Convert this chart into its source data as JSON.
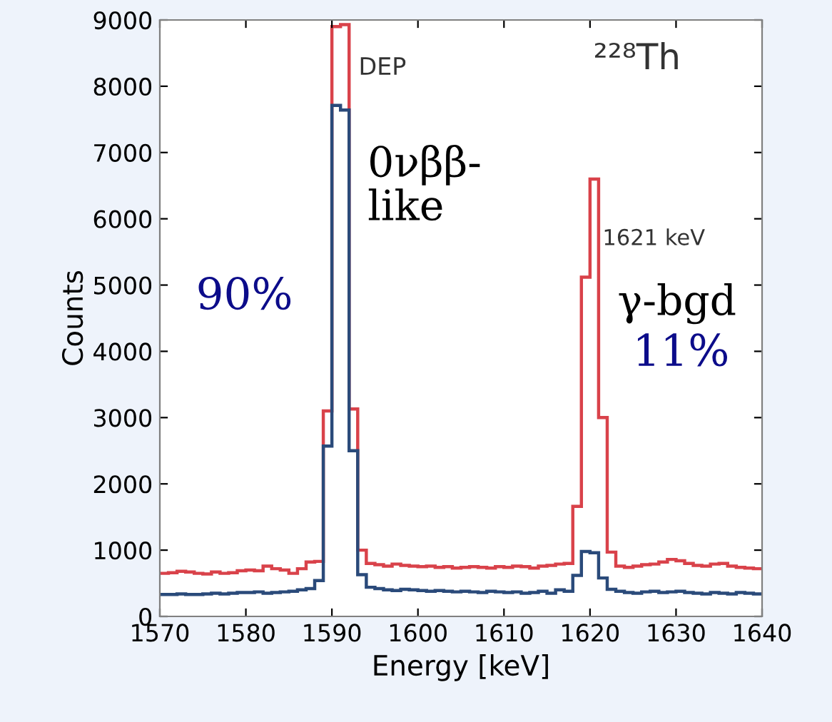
{
  "chart_data": {
    "type": "histogram",
    "xlabel": "Energy [keV]",
    "ylabel": "Counts",
    "bins": [
      1570,
      1571,
      1572,
      1573,
      1574,
      1575,
      1576,
      1577,
      1578,
      1579,
      1580,
      1581,
      1582,
      1583,
      1584,
      1585,
      1586,
      1587,
      1588,
      1589,
      1590,
      1591,
      1592,
      1593,
      1594,
      1595,
      1596,
      1597,
      1598,
      1599,
      1600,
      1601,
      1602,
      1603,
      1604,
      1605,
      1606,
      1607,
      1608,
      1609,
      1610,
      1611,
      1612,
      1613,
      1614,
      1615,
      1616,
      1617,
      1618,
      1619,
      1620,
      1621,
      1622,
      1623,
      1624,
      1625,
      1626,
      1627,
      1628,
      1629,
      1630,
      1631,
      1632,
      1633,
      1634,
      1635,
      1636,
      1637,
      1638,
      1639,
      1640
    ],
    "series": [
      {
        "color": "#d9424a",
        "values": [
          650,
          660,
          680,
          670,
          650,
          640,
          670,
          650,
          660,
          690,
          700,
          690,
          760,
          720,
          700,
          650,
          720,
          820,
          830,
          3100,
          8900,
          8930,
          3130,
          1000,
          800,
          780,
          760,
          790,
          770,
          760,
          750,
          760,
          740,
          750,
          730,
          740,
          750,
          740,
          730,
          750,
          740,
          760,
          750,
          730,
          760,
          770,
          790,
          800,
          1660,
          5120,
          6600,
          3000,
          970,
          760,
          740,
          760,
          780,
          790,
          820,
          860,
          840,
          800,
          770,
          760,
          790,
          800,
          760,
          740,
          730,
          720
        ]
      },
      {
        "color": "#2a4a7a",
        "values": [
          330,
          330,
          340,
          330,
          330,
          340,
          350,
          340,
          350,
          360,
          360,
          370,
          350,
          360,
          370,
          380,
          400,
          420,
          540,
          2570,
          7710,
          7640,
          2500,
          630,
          440,
          420,
          400,
          390,
          410,
          400,
          390,
          380,
          390,
          380,
          370,
          380,
          370,
          360,
          380,
          370,
          360,
          370,
          350,
          360,
          380,
          350,
          400,
          380,
          620,
          980,
          960,
          580,
          410,
          380,
          360,
          350,
          370,
          380,
          360,
          370,
          380,
          360,
          350,
          340,
          360,
          350,
          340,
          360,
          350,
          340
        ]
      }
    ],
    "xlim": [
      1570,
      1640
    ],
    "ylim": [
      0,
      9000
    ],
    "xticks": [
      1570,
      1580,
      1590,
      1600,
      1610,
      1620,
      1630,
      1640
    ],
    "yticks": [
      0,
      1000,
      2000,
      3000,
      4000,
      5000,
      6000,
      7000,
      8000,
      9000
    ],
    "grid": false,
    "legend": false,
    "annotations": [
      "DEP",
      "0νββ-\nlike",
      "90%",
      "1621 keV",
      "γ-bgd",
      "11%",
      "²²⁸Th"
    ]
  }
}
